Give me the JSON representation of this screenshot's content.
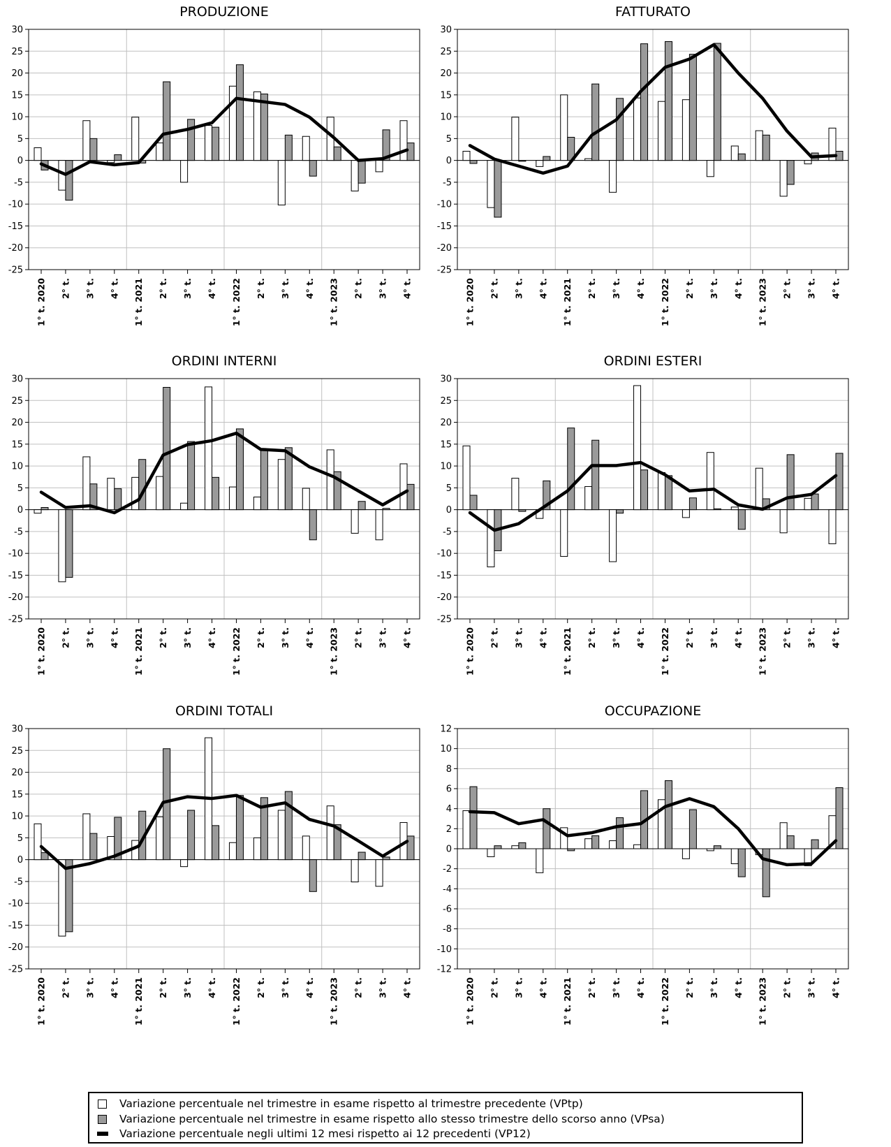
{
  "x_labels": [
    "1° t. 2020",
    "2° t.",
    "3° t.",
    "4° t.",
    "1° t. 2021",
    "2° t.",
    "3° t.",
    "4° t.",
    "1° t. 2022",
    "2° t.",
    "3° t.",
    "4° t.",
    "1° t. 2023",
    "2° t.",
    "3° t.",
    "4° t."
  ],
  "colors": {
    "vptp": "#ffffff",
    "vpsa": "#9a9a9a",
    "vp12": "#000000",
    "grid": "#c0c0c0"
  },
  "legend": {
    "vptp": "Variazione percentuale nel trimestre in esame rispetto al trimestre precedente (VPtp)",
    "vpsa": "Variazione percentuale nel trimestre in esame rispetto allo stesso trimestre dello scorso anno (VPsa)",
    "vp12": "Variazione percentuale negli ultimi 12 mesi rispetto ai 12 precedenti (VP12)"
  },
  "chart_data": [
    {
      "type": "bar",
      "title": "PRODUZIONE",
      "ylim": [
        -25,
        30
      ],
      "ytick_step": 5,
      "grid": true,
      "series": [
        {
          "name": "VPtp",
          "kind": "bar",
          "values": [
            2.9,
            -6.8,
            9.1,
            -0.5,
            9.9,
            4.0,
            -5.0,
            8.0,
            17.0,
            15.7,
            -10.2,
            5.5,
            9.9,
            -7.0,
            -2.6,
            9.1
          ]
        },
        {
          "name": "VPsa",
          "kind": "bar",
          "values": [
            -2.2,
            -9.1,
            5.0,
            1.3,
            -0.6,
            18.0,
            9.4,
            7.6,
            21.9,
            15.2,
            5.8,
            -3.6,
            3.1,
            -5.2,
            7.0,
            4.0
          ]
        },
        {
          "name": "VP12",
          "kind": "line",
          "values": [
            -0.8,
            -3.2,
            -0.3,
            -1.0,
            -0.5,
            6.0,
            7.1,
            8.6,
            14.2,
            13.5,
            12.8,
            9.9,
            5.2,
            0.0,
            0.4,
            2.4
          ]
        }
      ]
    },
    {
      "type": "bar",
      "title": "FATTURATO",
      "ylim": [
        -25,
        30
      ],
      "ytick_step": 5,
      "grid": true,
      "series": [
        {
          "name": "VPtp",
          "kind": "bar",
          "values": [
            2.1,
            -10.8,
            9.9,
            -1.4,
            15.0,
            0.4,
            -7.3,
            14.3,
            13.5,
            13.9,
            -3.7,
            3.3,
            6.8,
            -8.2,
            -0.8,
            7.4
          ]
        },
        {
          "name": "VPsa",
          "kind": "bar",
          "values": [
            -0.7,
            -13.0,
            -0.2,
            0.9,
            5.3,
            17.5,
            14.2,
            26.7,
            27.2,
            24.3,
            26.8,
            1.5,
            5.8,
            -5.5,
            1.7,
            2.1
          ]
        },
        {
          "name": "VP12",
          "kind": "line",
          "values": [
            3.4,
            0.3,
            -1.3,
            -2.9,
            -1.3,
            5.8,
            9.3,
            15.8,
            21.3,
            23.2,
            26.5,
            20.0,
            14.2,
            6.7,
            0.8,
            1.1
          ]
        }
      ]
    },
    {
      "type": "bar",
      "title": "ORDINI INTERNI",
      "ylim": [
        -25,
        30
      ],
      "ytick_step": 5,
      "grid": true,
      "series": [
        {
          "name": "VPtp",
          "kind": "bar",
          "values": [
            -0.8,
            -16.5,
            12.1,
            7.2,
            7.4,
            7.6,
            1.5,
            28.1,
            5.2,
            2.9,
            11.5,
            4.9,
            13.7,
            -5.4,
            -6.9,
            10.5
          ]
        },
        {
          "name": "VPsa",
          "kind": "bar",
          "values": [
            0.5,
            -15.5,
            5.9,
            4.8,
            11.5,
            28.0,
            15.6,
            7.4,
            18.5,
            13.7,
            14.2,
            -6.9,
            8.7,
            1.9,
            0.3,
            5.8
          ]
        },
        {
          "name": "VP12",
          "kind": "line",
          "values": [
            4.0,
            0.5,
            0.9,
            -0.7,
            2.3,
            12.5,
            14.9,
            15.8,
            17.5,
            13.8,
            13.5,
            9.8,
            7.5,
            4.3,
            1.1,
            4.3
          ]
        }
      ]
    },
    {
      "type": "bar",
      "title": "ORDINI ESTERI",
      "ylim": [
        -25,
        30
      ],
      "ytick_step": 5,
      "grid": true,
      "series": [
        {
          "name": "VPtp",
          "kind": "bar",
          "values": [
            14.6,
            -13.1,
            7.2,
            -2.0,
            -10.7,
            5.3,
            -11.9,
            28.4,
            8.5,
            -1.8,
            13.1,
            0.6,
            9.5,
            -5.3,
            2.6,
            -7.8
          ]
        },
        {
          "name": "VPsa",
          "kind": "bar",
          "values": [
            3.3,
            -9.4,
            -0.4,
            6.6,
            18.7,
            15.9,
            -0.8,
            9.1,
            7.8,
            2.7,
            0.2,
            -4.5,
            2.5,
            12.6,
            3.6,
            12.9
          ]
        },
        {
          "name": "VP12",
          "kind": "line",
          "values": [
            -0.7,
            -4.7,
            -3.2,
            0.5,
            4.3,
            10.1,
            10.1,
            10.8,
            8.0,
            4.3,
            4.7,
            1.1,
            0.1,
            2.7,
            3.5,
            7.8
          ]
        }
      ]
    },
    {
      "type": "bar",
      "title": "ORDINI TOTALI",
      "ylim": [
        -25,
        30
      ],
      "ytick_step": 5,
      "grid": true,
      "series": [
        {
          "name": "VPtp",
          "kind": "bar",
          "values": [
            8.2,
            -17.5,
            10.5,
            5.3,
            4.4,
            9.8,
            -1.6,
            27.9,
            3.9,
            5.0,
            11.3,
            5.4,
            12.3,
            -5.1,
            -6.1,
            8.5
          ]
        },
        {
          "name": "VPsa",
          "kind": "bar",
          "values": [
            1.6,
            -16.5,
            6.0,
            9.7,
            11.1,
            25.4,
            11.3,
            7.8,
            14.7,
            14.2,
            15.6,
            -7.3,
            8.0,
            1.7,
            0.6,
            5.4
          ]
        },
        {
          "name": "VP12",
          "kind": "line",
          "values": [
            3.0,
            -2.0,
            -0.9,
            0.8,
            3.1,
            13.1,
            14.4,
            14.0,
            14.7,
            12.0,
            13.0,
            9.2,
            7.7,
            4.3,
            0.8,
            4.2
          ]
        }
      ]
    },
    {
      "type": "bar",
      "title": "OCCUPAZIONE",
      "ylim": [
        -12,
        12
      ],
      "ytick_step": 2,
      "grid": true,
      "series": [
        {
          "name": "VPtp",
          "kind": "bar",
          "values": [
            3.8,
            -0.8,
            0.3,
            -2.4,
            2.1,
            1.0,
            0.8,
            0.4,
            4.9,
            -1.0,
            -0.2,
            -1.5,
            -0.6,
            2.6,
            -1.7,
            3.3
          ]
        },
        {
          "name": "VPsa",
          "kind": "bar",
          "values": [
            6.2,
            0.3,
            0.6,
            4.0,
            -0.2,
            1.3,
            3.1,
            5.8,
            6.8,
            3.9,
            0.3,
            -2.8,
            -4.8,
            1.3,
            0.9,
            6.1
          ]
        },
        {
          "name": "VP12",
          "kind": "line",
          "values": [
            3.7,
            3.6,
            2.5,
            2.9,
            1.3,
            1.6,
            2.2,
            2.5,
            4.2,
            5.0,
            4.2,
            2.0,
            -1.0,
            -1.6,
            -1.5,
            0.8
          ]
        }
      ]
    }
  ]
}
